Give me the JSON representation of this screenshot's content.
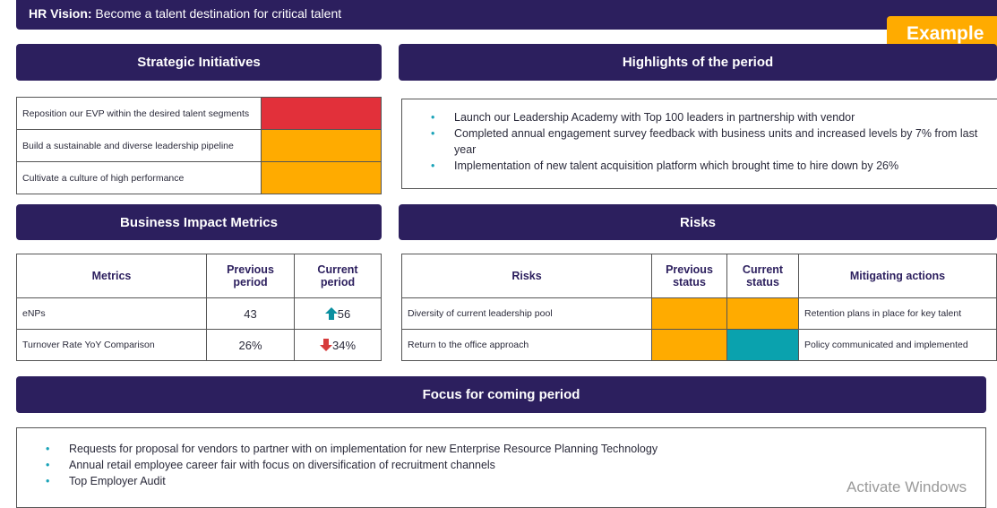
{
  "banner": {
    "label": "HR Vision:",
    "text": "Become a talent destination for critical talent"
  },
  "badge": "Example",
  "strategic_initiatives": {
    "title": "Strategic Initiatives",
    "rows": [
      {
        "text": "Reposition our EVP within the desired talent segments",
        "color": "#e2303a"
      },
      {
        "text": "Build a sustainable and diverse leadership pipeline",
        "color": "#ffab00"
      },
      {
        "text": "Cultivate a culture of high performance",
        "color": "#ffab00"
      }
    ]
  },
  "highlights": {
    "title": "Highlights of the period",
    "items": [
      "Launch our Leadership Academy with Top 100 leaders in partnership with vendor",
      "Completed annual engagement survey feedback with business units and increased levels by 7% from last year",
      "Implementation of new talent acquisition platform which brought time to hire down by 26%"
    ]
  },
  "business_impact": {
    "title": "Business Impact Metrics",
    "header": [
      "Metrics",
      "Previous period",
      "Current period"
    ],
    "rows": [
      [
        "eNPs",
        "43",
        "56"
      ],
      [
        "Turnover Rate YoY Comparison",
        "26%",
        "34%"
      ]
    ]
  },
  "risks": {
    "title": "Risks",
    "header": [
      "Risks",
      "Previous status",
      "Current status",
      "Mitigating actions"
    ],
    "rows": [
      {
        "risk": "Diversity of current leadership pool",
        "previous": "#ffab00",
        "current": "#ffab00",
        "action": "Retention plans in place for key talent"
      },
      {
        "risk": "Return to the office approach",
        "previous": "#ffab00",
        "current": "#0aa2ae",
        "action": "Policy communicated and implemented"
      }
    ]
  },
  "focus": {
    "title": "Focus for coming period",
    "items": [
      "Requests for proposal for vendors to partner with on implementation for new Enterprise Resource Planning Technology",
      "Annual retail employee career fair with focus on diversification of recruitment channels",
      "Top Employer Audit"
    ]
  },
  "watermark": "Activate Windows"
}
